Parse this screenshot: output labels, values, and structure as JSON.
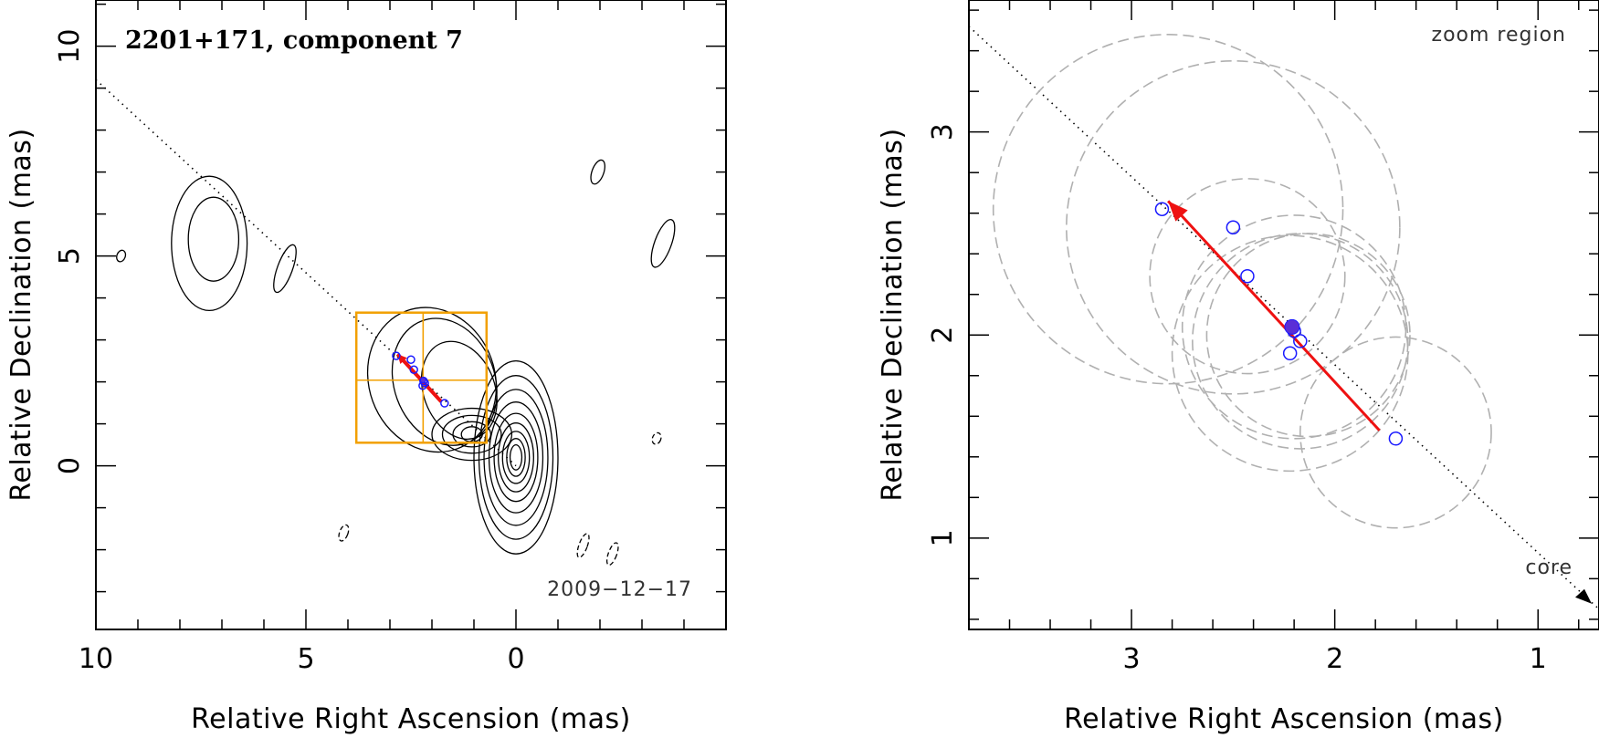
{
  "chart_data": [
    {
      "type": "scatter",
      "title": "2201+171, component 7",
      "epoch_label": "2009−12−17",
      "xlabel": "Relative Right Ascension (mas)",
      "ylabel": "Relative Declination (mas)",
      "xlim": [
        10,
        -5
      ],
      "ylim": [
        -3.9,
        11.1
      ],
      "x_ticks": [
        10,
        5,
        0
      ],
      "y_ticks": [
        10,
        5,
        0
      ],
      "x_tick_labels": [
        "10",
        "5",
        "0"
      ],
      "y_tick_labels": [
        "10",
        "5",
        "0"
      ],
      "jet_direction_line": {
        "from": [
          10,
          9.2
        ],
        "to": [
          0,
          0
        ]
      },
      "component_positions": [
        {
          "x": 2.85,
          "y": 2.62
        },
        {
          "x": 2.5,
          "y": 2.53
        },
        {
          "x": 2.43,
          "y": 2.29
        },
        {
          "x": 2.2,
          "y": 2.02
        },
        {
          "x": 2.22,
          "y": 1.91
        },
        {
          "x": 2.17,
          "y": 1.97
        },
        {
          "x": 1.7,
          "y": 1.49
        }
      ],
      "mean_position": {
        "x": 2.21,
        "y": 2.04
      },
      "motion_vector": {
        "from": [
          1.78,
          1.53
        ],
        "to": [
          2.82,
          2.66
        ]
      },
      "zoom_box": {
        "ra_range": [
          3.8,
          0.7
        ],
        "dec_range": [
          0.55,
          3.65
        ],
        "crosshair": [
          2.21,
          2.04
        ]
      },
      "contours": {
        "core": {
          "x": 0,
          "y": 0.2,
          "levels": [
            {
              "rx": 0.14,
              "ry": 0.3
            },
            {
              "rx": 0.22,
              "ry": 0.45
            },
            {
              "rx": 0.32,
              "ry": 0.62
            },
            {
              "rx": 0.42,
              "ry": 0.82
            },
            {
              "rx": 0.52,
              "ry": 1.05
            },
            {
              "rx": 0.64,
              "ry": 1.32
            },
            {
              "rx": 0.76,
              "ry": 1.62
            },
            {
              "rx": 0.88,
              "ry": 1.95
            },
            {
              "rx": 1.0,
              "ry": 2.3
            }
          ]
        },
        "knot": {
          "x": 1.05,
          "y": 0.75,
          "levels": [
            {
              "rx": 0.25,
              "ry": 0.18
            },
            {
              "rx": 0.45,
              "ry": 0.3
            },
            {
              "rx": 0.7,
              "ry": 0.45
            },
            {
              "rx": 0.95,
              "ry": 0.62
            }
          ]
        },
        "extended_jet": [
          {
            "x": 1.35,
            "y": 1.8,
            "rx": 0.85,
            "ry": 1.2
          },
          {
            "x": 1.7,
            "y": 2.0,
            "rx": 1.2,
            "ry": 1.55
          },
          {
            "x": 2.0,
            "y": 2.05,
            "rx": 1.5,
            "ry": 1.75
          }
        ],
        "outer_knot": [
          {
            "x": 7.2,
            "y": 5.4,
            "rx": 0.6,
            "ry": 1.0
          },
          {
            "x": 7.3,
            "y": 5.3,
            "rx": 0.9,
            "ry": 1.6
          }
        ],
        "isolated": [
          {
            "x": 5.5,
            "y": 4.7,
            "rx": 0.18,
            "ry": 0.6,
            "dashed": false
          },
          {
            "x": 9.4,
            "y": 5.0,
            "rx": 0.1,
            "ry": 0.14,
            "dashed": false
          },
          {
            "x": -3.5,
            "y": 5.3,
            "rx": 0.2,
            "ry": 0.6,
            "dashed": false
          },
          {
            "x": -1.95,
            "y": 7.0,
            "rx": 0.14,
            "ry": 0.3,
            "dashed": false
          },
          {
            "x": 4.1,
            "y": -1.6,
            "rx": 0.1,
            "ry": 0.2,
            "dashed": true
          },
          {
            "x": -1.6,
            "y": -1.9,
            "rx": 0.1,
            "ry": 0.3,
            "dashed": true
          },
          {
            "x": -2.3,
            "y": -2.1,
            "rx": 0.1,
            "ry": 0.28,
            "dashed": true
          },
          {
            "x": -3.35,
            "y": 0.65,
            "rx": 0.1,
            "ry": 0.14,
            "dashed": true
          }
        ]
      }
    },
    {
      "type": "scatter",
      "label": "zoom region",
      "core_label": "core",
      "xlabel": "Relative Right Ascension (mas)",
      "ylabel": "Relative Declination (mas)",
      "xlim": [
        3.8,
        0.7
      ],
      "ylim": [
        0.55,
        3.65
      ],
      "x_ticks": [
        3,
        2,
        1
      ],
      "y_ticks": [
        3,
        2,
        1
      ],
      "x_tick_labels": [
        "3",
        "2",
        "1"
      ],
      "y_tick_labels": [
        "3",
        "2",
        "1"
      ],
      "jet_direction_line": {
        "from": [
          3.8,
          3.52
        ],
        "to": [
          0.7,
          0.65
        ]
      },
      "component_positions": [
        {
          "x": 2.85,
          "y": 2.62
        },
        {
          "x": 2.5,
          "y": 2.53
        },
        {
          "x": 2.43,
          "y": 2.29
        },
        {
          "x": 2.2,
          "y": 2.02
        },
        {
          "x": 2.22,
          "y": 1.91
        },
        {
          "x": 2.17,
          "y": 1.97
        },
        {
          "x": 1.7,
          "y": 1.49
        }
      ],
      "mean_position": {
        "x": 2.21,
        "y": 2.04
      },
      "motion_vector": {
        "from": [
          1.78,
          1.53
        ],
        "to": [
          2.82,
          2.66
        ]
      },
      "position_error_circles": [
        {
          "x": 2.82,
          "y": 2.62,
          "r": 0.86
        },
        {
          "x": 2.5,
          "y": 2.53,
          "r": 0.82
        },
        {
          "x": 2.43,
          "y": 2.29,
          "r": 0.48
        },
        {
          "x": 2.2,
          "y": 2.04,
          "r": 0.55
        },
        {
          "x": 2.22,
          "y": 1.91,
          "r": 0.58
        },
        {
          "x": 2.17,
          "y": 1.97,
          "r": 0.53
        },
        {
          "x": 2.13,
          "y": 2.0,
          "r": 0.5
        },
        {
          "x": 1.7,
          "y": 1.52,
          "r": 0.47
        }
      ]
    }
  ]
}
